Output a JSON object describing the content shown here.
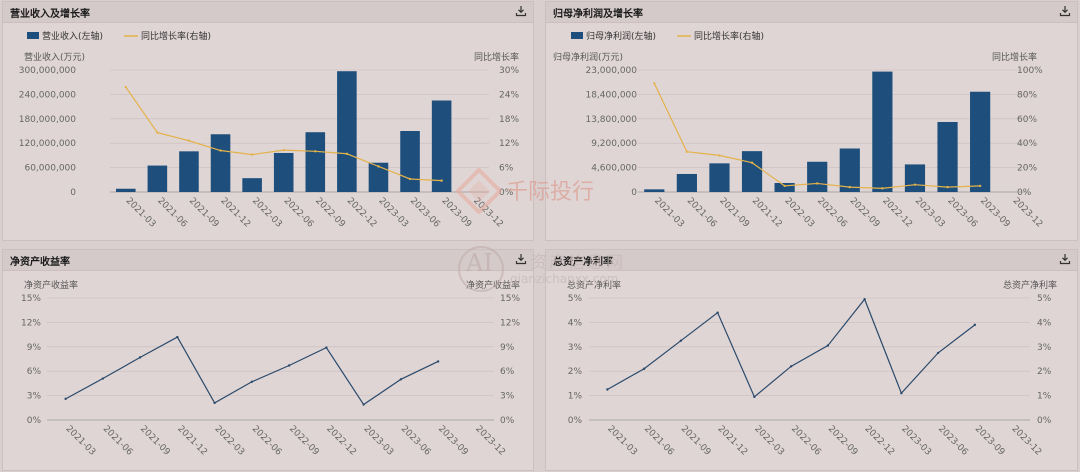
{
  "colors": {
    "bar": "#1e4f7c",
    "yoy": "#e4b24a",
    "line": "#2b4a6b",
    "axis": "#666666",
    "grid": "#cbbcbc"
  },
  "panels": [
    {
      "title": "营业收入及增长率",
      "download_icon": "download-icon",
      "legend": [
        {
          "label": "营业收入(左轴)",
          "kind": "bar"
        },
        {
          "label": "同比增长率(右轴)",
          "kind": "line"
        }
      ],
      "left_axis_title": "营业收入(万元)",
      "right_axis_title": "同比增长率",
      "left_ticks": [
        "0",
        "60,000,000",
        "120,000,000",
        "180,000,000",
        "240,000,000",
        "300,000,000"
      ],
      "right_ticks": [
        "0%",
        "6%",
        "12%",
        "18%",
        "24%",
        "30%"
      ]
    },
    {
      "title": "归母净利润及增长率",
      "download_icon": "download-icon",
      "legend": [
        {
          "label": "归母净利润(左轴)",
          "kind": "bar"
        },
        {
          "label": "同比增长率(右轴)",
          "kind": "line"
        }
      ],
      "left_axis_title": "归母净利润(万元)",
      "right_axis_title": "同比增长率",
      "left_ticks": [
        "0",
        "4,600,000",
        "9,200,000",
        "13,800,000",
        "18,400,000",
        "23,000,000"
      ],
      "right_ticks": [
        "0%",
        "20%",
        "40%",
        "60%",
        "80%",
        "100%"
      ]
    },
    {
      "title": "净资产收益率",
      "download_icon": "download-icon",
      "legend": [],
      "left_axis_title": "净资产收益率",
      "right_axis_title": "净资产收益率",
      "left_ticks": [
        "0%",
        "3%",
        "6%",
        "9%",
        "12%",
        "15%"
      ],
      "right_ticks": [
        "0%",
        "3%",
        "6%",
        "9%",
        "12%",
        "15%"
      ]
    },
    {
      "title": "总资产净利率",
      "download_icon": "download-icon",
      "legend": [],
      "left_axis_title": "总资产净利率",
      "right_axis_title": "总资产净利率",
      "left_ticks": [
        "0%",
        "1%",
        "2%",
        "3%",
        "4%",
        "5%"
      ],
      "right_ticks": [
        "0%",
        "1%",
        "2%",
        "3%",
        "4%",
        "5%"
      ]
    }
  ],
  "chart_data": [
    {
      "type": "bar",
      "title": "营业收入及增长率",
      "categories": [
        "2021-03",
        "2021-06",
        "2021-09",
        "2021-12",
        "2022-03",
        "2022-06",
        "2022-09",
        "2022-12",
        "2023-03",
        "2023-06",
        "2023-09",
        "2023-12"
      ],
      "ylim": [
        0,
        300000000
      ],
      "y2lim": [
        0,
        30
      ],
      "series": [
        {
          "name": "营业收入(左轴)",
          "kind": "bar",
          "axis": "left",
          "values": [
            8000000,
            65000000,
            100000000,
            142000000,
            34000000,
            96000000,
            147000000,
            297000000,
            72000000,
            150000000,
            225000000,
            null
          ]
        },
        {
          "name": "同比增长率(右轴)",
          "kind": "line",
          "axis": "right",
          "values": [
            25.8,
            14.6,
            12.6,
            10.2,
            9.2,
            10.3,
            10.0,
            9.4,
            6.3,
            3.2,
            2.8,
            null
          ]
        }
      ]
    },
    {
      "type": "bar",
      "title": "归母净利润及增长率",
      "categories": [
        "2021-03",
        "2021-06",
        "2021-09",
        "2021-12",
        "2022-03",
        "2022-06",
        "2022-09",
        "2022-12",
        "2023-03",
        "2023-06",
        "2023-09",
        "2023-12"
      ],
      "ylim": [
        0,
        23000000
      ],
      "y2lim": [
        0,
        100
      ],
      "series": [
        {
          "name": "归母净利润(左轴)",
          "kind": "bar",
          "axis": "left",
          "values": [
            500000,
            3400000,
            5400000,
            7700000,
            1700000,
            5700000,
            8200000,
            22700000,
            5200000,
            13200000,
            18900000,
            null
          ]
        },
        {
          "name": "同比增长率(右轴)",
          "kind": "line",
          "axis": "right",
          "values": [
            89,
            33,
            30,
            24,
            5,
            7,
            4,
            3,
            6,
            4,
            5,
            null
          ]
        }
      ]
    },
    {
      "type": "line",
      "title": "净资产收益率",
      "categories": [
        "2021-03",
        "2021-06",
        "2021-09",
        "2021-12",
        "2022-03",
        "2022-06",
        "2022-09",
        "2022-12",
        "2023-03",
        "2023-06",
        "2023-09",
        "2023-12"
      ],
      "ylim": [
        0,
        15
      ],
      "series": [
        {
          "values": [
            2.6,
            5.1,
            7.7,
            10.2,
            2.1,
            4.7,
            6.7,
            8.9,
            1.9,
            5.0,
            7.2,
            null
          ]
        }
      ]
    },
    {
      "type": "line",
      "title": "总资产净利率",
      "categories": [
        "2021-03",
        "2021-06",
        "2021-09",
        "2021-12",
        "2022-03",
        "2022-06",
        "2022-09",
        "2022-12",
        "2023-03",
        "2023-06",
        "2023-09",
        "2023-12"
      ],
      "ylim": [
        0,
        5
      ],
      "series": [
        {
          "values": [
            1.25,
            2.1,
            3.25,
            4.4,
            0.95,
            2.2,
            3.05,
            4.95,
            1.1,
            2.75,
            3.9,
            null
          ]
        }
      ]
    }
  ],
  "watermark": {
    "brand": "千际投行",
    "site": "资产信息网",
    "url": "qianzichanxx.com",
    "logo": "AI"
  }
}
